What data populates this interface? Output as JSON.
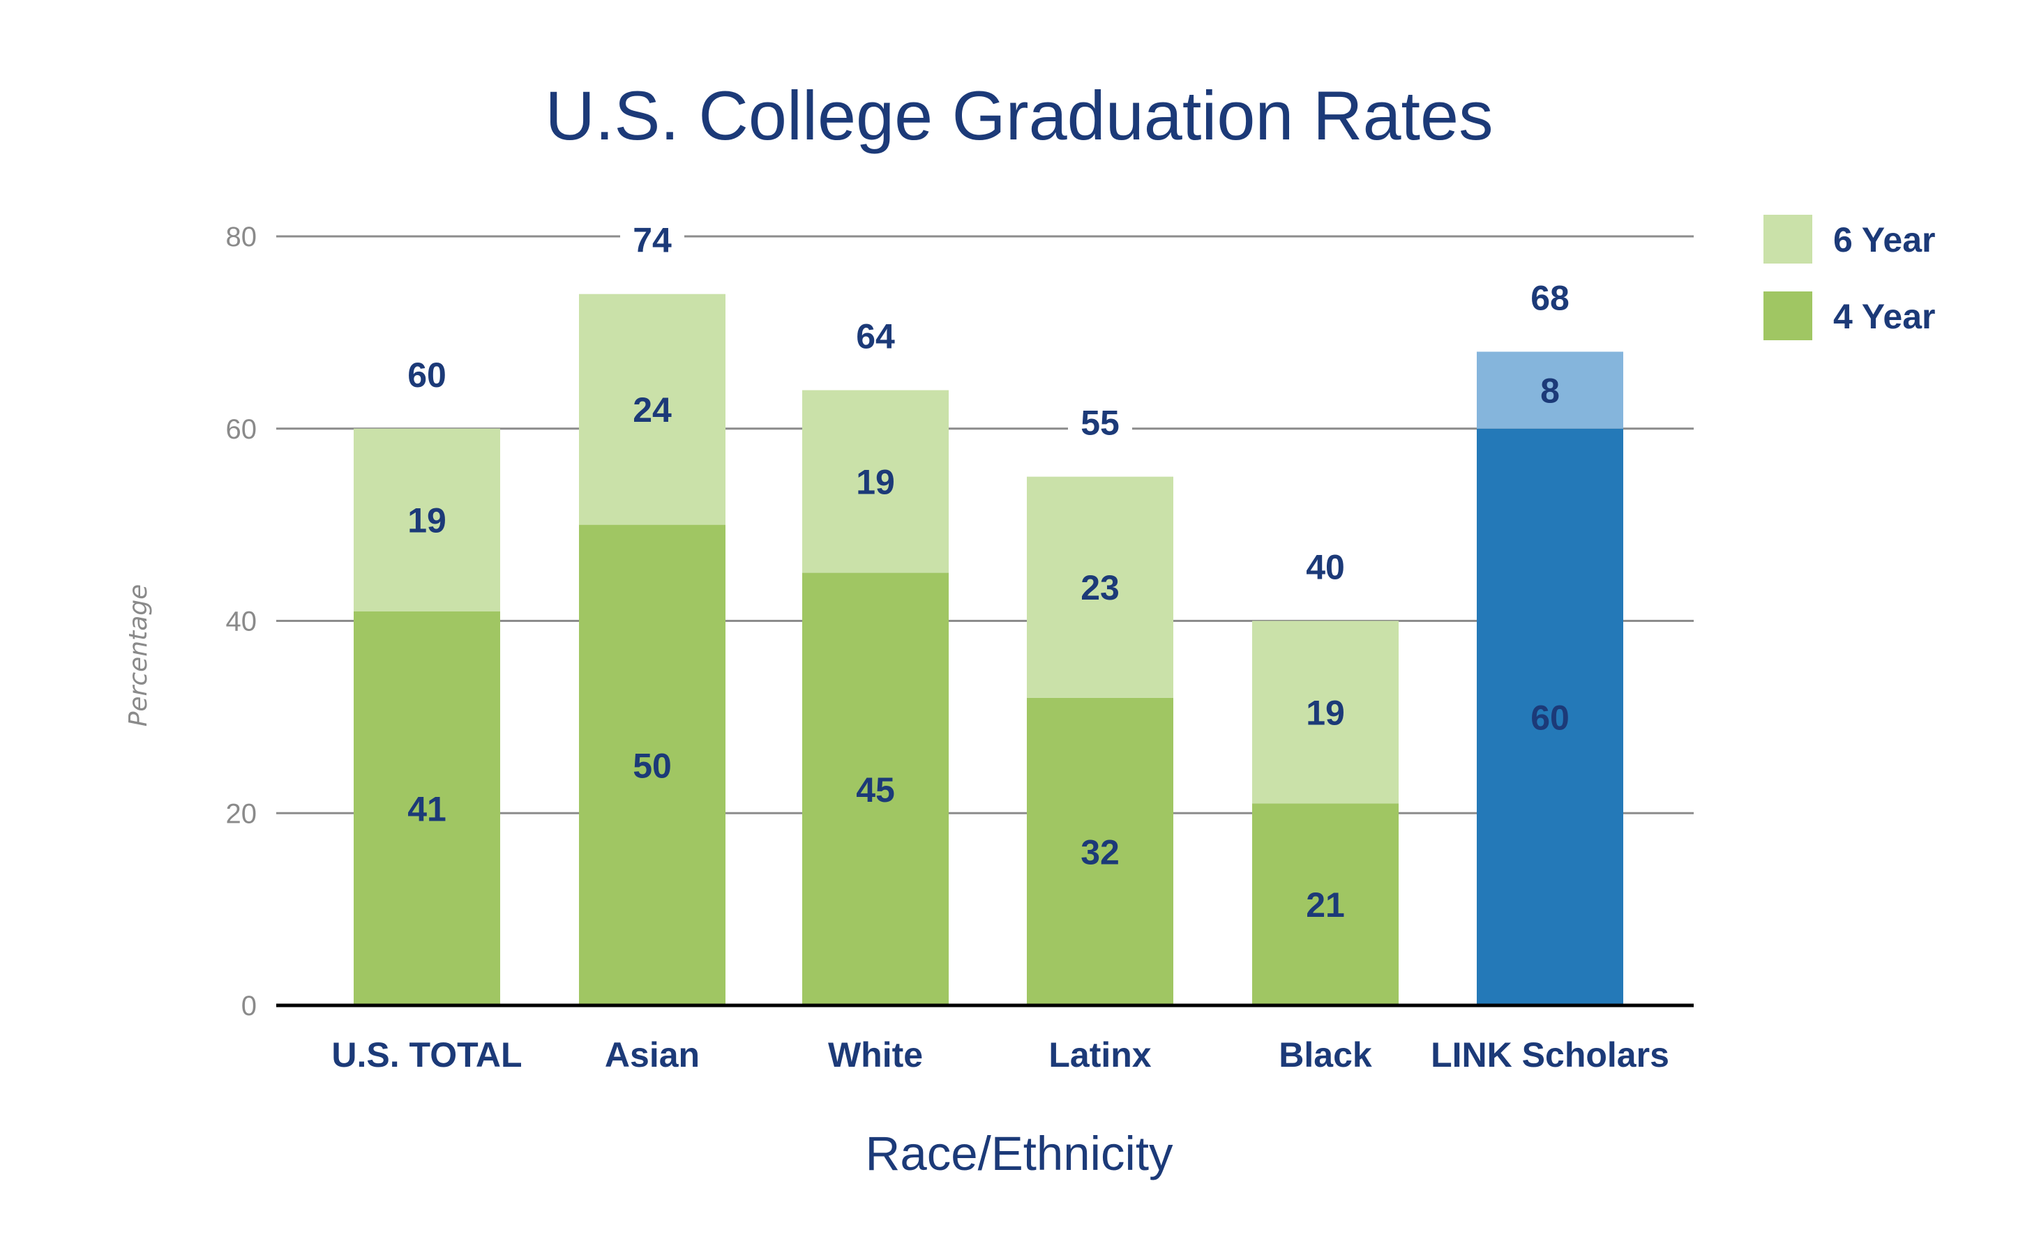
{
  "chart_data": {
    "type": "bar",
    "stacked": true,
    "title": "U.S. College Graduation Rates",
    "xlabel": "Race/Ethnicity",
    "ylabel": "Percentage",
    "ylim": [
      0,
      80
    ],
    "yticks": [
      0,
      20,
      40,
      60,
      80
    ],
    "grid": true,
    "legend_position": "top-right",
    "categories": [
      "U.S. TOTAL",
      "Asian",
      "White",
      "Latinx",
      "Black",
      "LINK Scholars"
    ],
    "series": [
      {
        "name": "4 Year",
        "values": [
          41,
          50,
          45,
          32,
          21,
          60
        ],
        "color": "#a0c663",
        "highlight_color": "#2479b8"
      },
      {
        "name": "6 Year",
        "values": [
          19,
          24,
          19,
          23,
          19,
          8
        ],
        "color": "#cae1a9",
        "highlight_color": "#85b5dc"
      }
    ],
    "totals": [
      60,
      74,
      64,
      55,
      40,
      68
    ],
    "highlight_category": "LINK Scholars",
    "legend": [
      {
        "label": "6 Year",
        "color": "#cae1a9"
      },
      {
        "label": "4 Year",
        "color": "#a0c663"
      }
    ],
    "colors": {
      "text": "#1c3a78",
      "axis": "#000000",
      "grid": "#8c8c8c",
      "tick_text": "#8a8a8a"
    }
  }
}
